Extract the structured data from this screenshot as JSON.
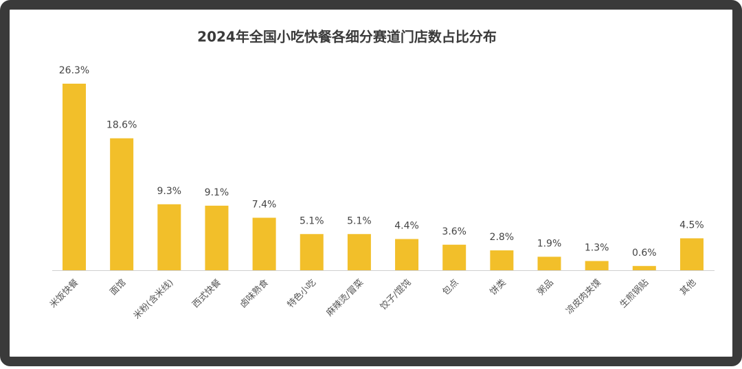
{
  "chart_data": {
    "type": "bar",
    "title": "2024年全国小吃快餐各细分赛道门店数占比分布",
    "categories": [
      "米饭快餐",
      "面馆",
      "米粉(含米线)",
      "西式快餐",
      "卤味熟食",
      "特色小吃",
      "麻辣烫/冒菜",
      "饺子/馄饨",
      "包点",
      "饼类",
      "粥品",
      "凉皮肉夹馍",
      "生煎锅贴",
      "其他"
    ],
    "values": [
      26.3,
      18.6,
      9.3,
      9.1,
      7.4,
      5.1,
      5.1,
      4.4,
      3.6,
      2.8,
      1.9,
      1.3,
      0.6,
      4.5
    ],
    "value_labels": [
      "26.3%",
      "18.6%",
      "9.3%",
      "9.1%",
      "7.4%",
      "5.1%",
      "5.1%",
      "4.4%",
      "3.6%",
      "2.8%",
      "1.9%",
      "1.3%",
      "0.6%",
      "4.5%"
    ],
    "color": "#f2bf2a"
  }
}
